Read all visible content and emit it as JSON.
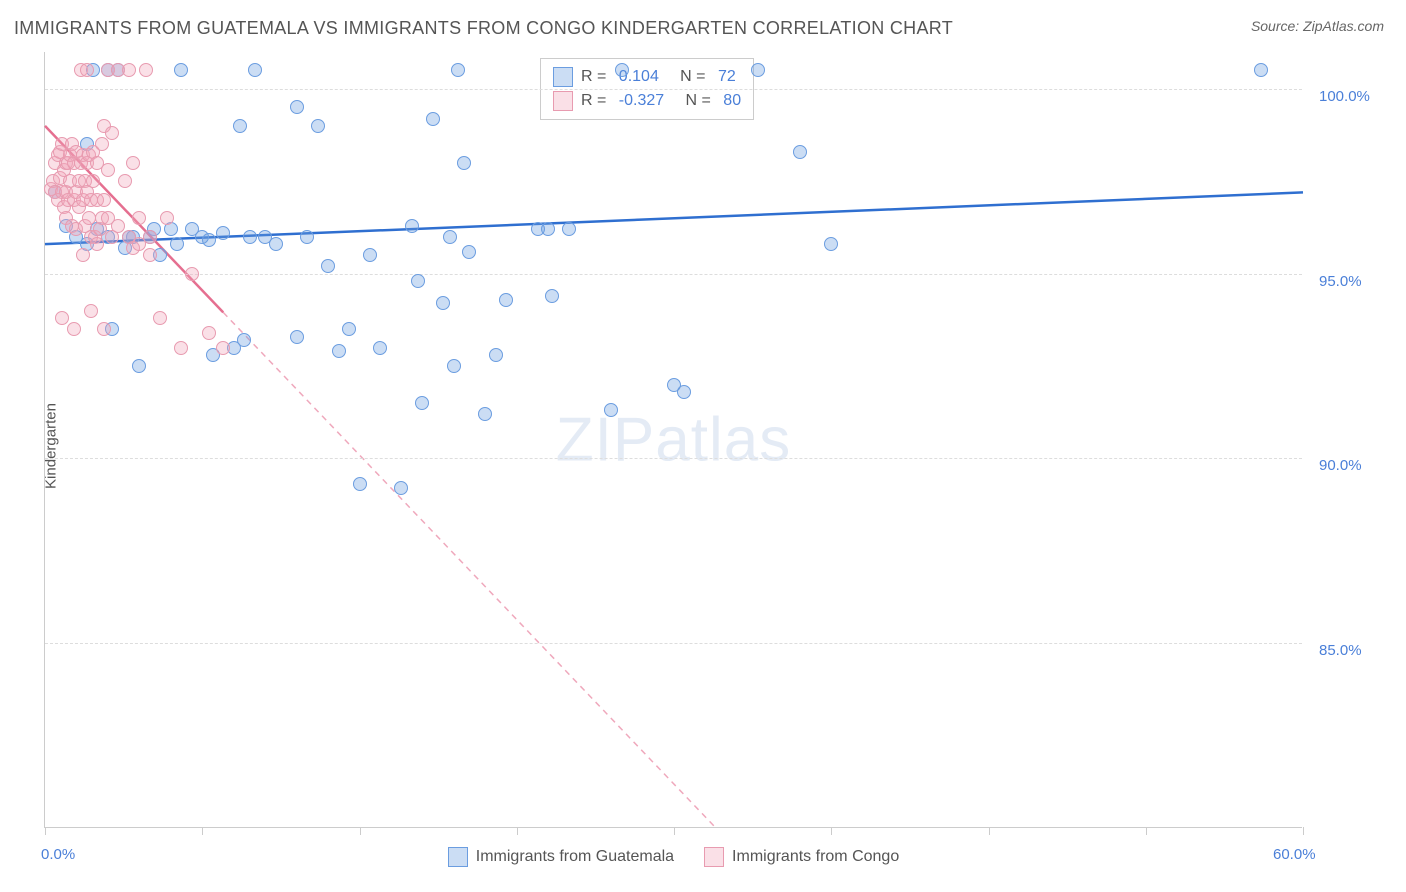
{
  "title": "IMMIGRANTS FROM GUATEMALA VS IMMIGRANTS FROM CONGO KINDERGARTEN CORRELATION CHART",
  "source": "Source: ZipAtlas.com",
  "y_axis_label": "Kindergarten",
  "watermark": "ZIPatlas",
  "chart": {
    "type": "scatter",
    "xlim": [
      0,
      60
    ],
    "ylim": [
      80,
      101
    ],
    "y_ticks": [
      85,
      90,
      95,
      100
    ],
    "y_tick_labels": [
      "85.0%",
      "90.0%",
      "95.0%",
      "100.0%"
    ],
    "x_ticks": [
      0,
      7.5,
      15,
      22.5,
      30,
      37.5,
      45,
      52.5,
      60
    ],
    "x_tick_labels": {
      "0": "0.0%",
      "60": "60.0%"
    },
    "background_color": "#ffffff",
    "grid_color": "#dddddd",
    "series": [
      {
        "name": "Immigrants from Guatemala",
        "color": "#6b9de0",
        "fill": "rgba(107,157,224,0.35)",
        "stroke": "#6b9de0",
        "r_value": "0.104",
        "n_value": "72",
        "marker_radius": 7,
        "regression": {
          "x1": 0,
          "y1": 95.8,
          "x2": 60,
          "y2": 97.2,
          "solid_until_x": 60,
          "line_color": "#2f6fd0",
          "width": 2.5
        },
        "points": [
          [
            0.5,
            97.2
          ],
          [
            1,
            96.3
          ],
          [
            1.5,
            96.0
          ],
          [
            2,
            98.5
          ],
          [
            2,
            95.8
          ],
          [
            2.3,
            100.5
          ],
          [
            2.5,
            96.2
          ],
          [
            3,
            96.0
          ],
          [
            3,
            100.5
          ],
          [
            3.2,
            93.5
          ],
          [
            3.5,
            100.5
          ],
          [
            3.8,
            95.7
          ],
          [
            4,
            96.0
          ],
          [
            4.2,
            96.0
          ],
          [
            4.5,
            92.5
          ],
          [
            5,
            96.0
          ],
          [
            5.2,
            96.2
          ],
          [
            5.5,
            95.5
          ],
          [
            6,
            96.2
          ],
          [
            6.3,
            95.8
          ],
          [
            6.5,
            100.5
          ],
          [
            7,
            96.2
          ],
          [
            7.5,
            96.0
          ],
          [
            7.8,
            95.9
          ],
          [
            8,
            92.8
          ],
          [
            8.5,
            96.1
          ],
          [
            9,
            93.0
          ],
          [
            9.3,
            99.0
          ],
          [
            9.5,
            93.2
          ],
          [
            9.8,
            96.0
          ],
          [
            10,
            100.5
          ],
          [
            10.5,
            96.0
          ],
          [
            11,
            95.8
          ],
          [
            12,
            99.5
          ],
          [
            12,
            93.3
          ],
          [
            12.5,
            96.0
          ],
          [
            13,
            99.0
          ],
          [
            13.5,
            95.2
          ],
          [
            14,
            92.9
          ],
          [
            14.5,
            93.5
          ],
          [
            15,
            89.3
          ],
          [
            15.5,
            95.5
          ],
          [
            16,
            93.0
          ],
          [
            17,
            89.2
          ],
          [
            17.5,
            96.3
          ],
          [
            17.8,
            94.8
          ],
          [
            18,
            91.5
          ],
          [
            18.5,
            99.2
          ],
          [
            19,
            94.2
          ],
          [
            19.3,
            96.0
          ],
          [
            19.5,
            92.5
          ],
          [
            19.7,
            100.5
          ],
          [
            20,
            98.0
          ],
          [
            20.2,
            95.6
          ],
          [
            21,
            91.2
          ],
          [
            21.5,
            92.8
          ],
          [
            22,
            94.3
          ],
          [
            23.5,
            96.2
          ],
          [
            24,
            96.2
          ],
          [
            24.2,
            94.4
          ],
          [
            25,
            96.2
          ],
          [
            27,
            91.3
          ],
          [
            27.5,
            100.5
          ],
          [
            30,
            92.0
          ],
          [
            30.5,
            91.8
          ],
          [
            34,
            100.5
          ],
          [
            36,
            98.3
          ],
          [
            37.5,
            95.8
          ],
          [
            58,
            100.5
          ]
        ]
      },
      {
        "name": "Immigrants from Congo",
        "color": "#e89bb0",
        "fill": "rgba(240,165,185,0.35)",
        "stroke": "#e89bb0",
        "r_value": "-0.327",
        "n_value": "80",
        "marker_radius": 7,
        "regression": {
          "x1": 0,
          "y1": 99.0,
          "x2": 32,
          "y2": 80.0,
          "solid_until_x": 8.5,
          "line_color": "#e56f90",
          "width": 2.5,
          "dash": "6,5"
        },
        "points": [
          [
            0.3,
            97.3
          ],
          [
            0.4,
            97.5
          ],
          [
            0.5,
            98.0
          ],
          [
            0.5,
            97.2
          ],
          [
            0.6,
            98.2
          ],
          [
            0.6,
            97.0
          ],
          [
            0.7,
            97.6
          ],
          [
            0.7,
            98.3
          ],
          [
            0.8,
            98.5
          ],
          [
            0.8,
            97.2
          ],
          [
            0.9,
            96.8
          ],
          [
            0.9,
            97.8
          ],
          [
            1.0,
            98.0
          ],
          [
            1.0,
            97.2
          ],
          [
            1.0,
            96.5
          ],
          [
            1.1,
            98.0
          ],
          [
            1.1,
            97.0
          ],
          [
            1.2,
            98.2
          ],
          [
            1.2,
            97.5
          ],
          [
            1.3,
            96.3
          ],
          [
            1.3,
            98.5
          ],
          [
            1.4,
            97.0
          ],
          [
            1.4,
            98.0
          ],
          [
            1.5,
            97.2
          ],
          [
            1.5,
            96.2
          ],
          [
            1.5,
            98.3
          ],
          [
            1.6,
            97.5
          ],
          [
            1.6,
            96.8
          ],
          [
            1.7,
            98.0
          ],
          [
            1.7,
            100.5
          ],
          [
            1.8,
            97.0
          ],
          [
            1.8,
            98.2
          ],
          [
            1.8,
            95.5
          ],
          [
            1.9,
            97.5
          ],
          [
            1.9,
            96.3
          ],
          [
            2.0,
            98.0
          ],
          [
            2.0,
            97.2
          ],
          [
            2.0,
            100.5
          ],
          [
            2.1,
            96.5
          ],
          [
            2.1,
            98.2
          ],
          [
            2.2,
            97.0
          ],
          [
            2.2,
            96.0
          ],
          [
            2.3,
            98.3
          ],
          [
            2.3,
            97.5
          ],
          [
            2.4,
            96.0
          ],
          [
            2.5,
            98.0
          ],
          [
            2.5,
            97.0
          ],
          [
            2.5,
            95.8
          ],
          [
            2.6,
            96.2
          ],
          [
            2.7,
            98.5
          ],
          [
            2.7,
            96.5
          ],
          [
            2.8,
            97.0
          ],
          [
            2.8,
            99.0
          ],
          [
            3.0,
            100.5
          ],
          [
            3.0,
            96.5
          ],
          [
            3.0,
            97.8
          ],
          [
            3.2,
            96.0
          ],
          [
            3.2,
            98.8
          ],
          [
            3.5,
            96.3
          ],
          [
            3.5,
            100.5
          ],
          [
            3.8,
            97.5
          ],
          [
            4.0,
            96.0
          ],
          [
            4.0,
            100.5
          ],
          [
            4.2,
            95.7
          ],
          [
            4.2,
            98.0
          ],
          [
            4.5,
            95.8
          ],
          [
            4.5,
            96.5
          ],
          [
            4.8,
            100.5
          ],
          [
            5.0,
            96.0
          ],
          [
            5.0,
            95.5
          ],
          [
            5.5,
            93.8
          ],
          [
            5.8,
            96.5
          ],
          [
            0.8,
            93.8
          ],
          [
            1.4,
            93.5
          ],
          [
            2.2,
            94.0
          ],
          [
            2.8,
            93.5
          ],
          [
            6.5,
            93.0
          ],
          [
            7.0,
            95.0
          ],
          [
            7.8,
            93.4
          ],
          [
            8.5,
            93.0
          ]
        ]
      }
    ]
  },
  "stats_box": {
    "rows": [
      {
        "swatch_fill": "rgba(107,157,224,0.35)",
        "swatch_stroke": "#6b9de0",
        "r_label": "R = ",
        "r_val": "0.104",
        "n_label": "   N = ",
        "n_val": "72"
      },
      {
        "swatch_fill": "rgba(240,165,185,0.35)",
        "swatch_stroke": "#e89bb0",
        "r_label": "R = ",
        "r_val": "-0.327",
        "n_label": "   N = ",
        "n_val": "80"
      }
    ]
  },
  "bottom_legend": [
    {
      "swatch_fill": "rgba(107,157,224,0.35)",
      "swatch_stroke": "#6b9de0",
      "label": "Immigrants from Guatemala"
    },
    {
      "swatch_fill": "rgba(240,165,185,0.35)",
      "swatch_stroke": "#e89bb0",
      "label": "Immigrants from Congo"
    }
  ]
}
